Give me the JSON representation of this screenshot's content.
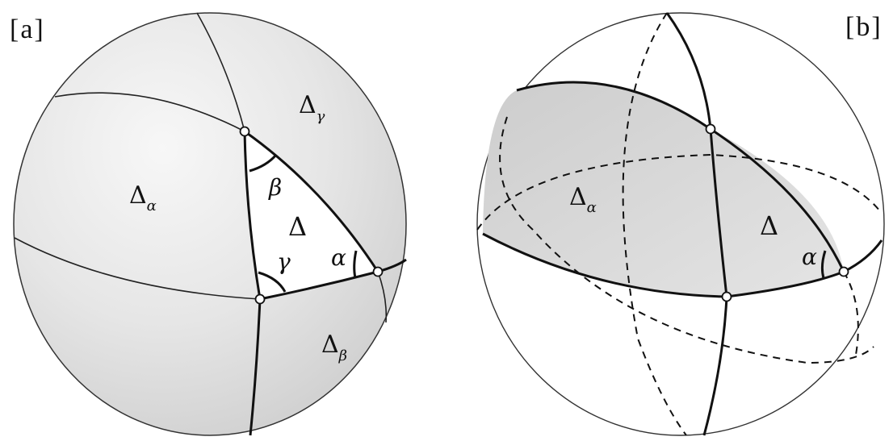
{
  "panel_a": {
    "label": "[a]",
    "regions": {
      "delta_alpha": {
        "symbol": "Δ",
        "subscript": "α"
      },
      "delta_gamma": {
        "symbol": "Δ",
        "subscript": "γ"
      },
      "delta_beta": {
        "symbol": "Δ",
        "subscript": "β"
      },
      "delta": {
        "symbol": "Δ"
      }
    },
    "angles": {
      "alpha": "α",
      "beta": "β",
      "gamma": "γ"
    }
  },
  "panel_b": {
    "label": "[b]",
    "regions": {
      "delta_alpha": {
        "symbol": "Δ",
        "subscript": "α"
      },
      "delta": {
        "symbol": "Δ"
      }
    },
    "angles": {
      "alpha": "α"
    }
  },
  "colors": {
    "ink": "#111111",
    "sphere_shade": "#e2e2e2",
    "lune_shade": "#d4d4d4",
    "background": "#ffffff"
  }
}
